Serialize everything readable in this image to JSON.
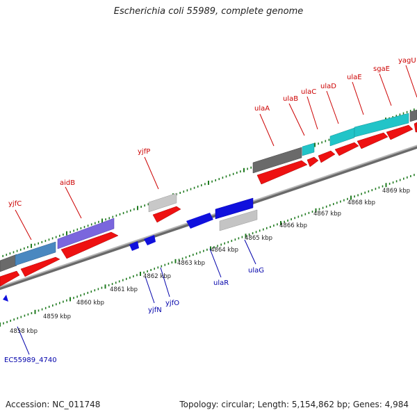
{
  "title": "Escherichia coli 55989, complete genome",
  "footer": {
    "accession": "Accession: NC_011748",
    "topology": "Topology: circular; Length: 5,154,862 bp; Genes: 4,984"
  },
  "colors": {
    "backbone": "#8c8c8c",
    "tick": "#1f7a1f",
    "gene_red": "#ee1111",
    "gene_blue": "#1010dd",
    "gene_cyan": "#22c4c8",
    "gene_purple": "#7a66dd",
    "gene_steel": "#4a88c0",
    "gene_gray": "#6a6a6a",
    "gene_lightgray": "#c4c4c4",
    "label_red": "#cc0000",
    "label_blue": "#0000aa"
  },
  "kbp_labels": [
    "4858 kbp",
    "4859 kbp",
    "4860 kbp",
    "4861 kbp",
    "4862 kbp",
    "4863 kbp",
    "4864 kbp",
    "4865 kbp",
    "4866 kbp",
    "4867 kbp",
    "4868 kbp",
    "4869 kbp"
  ],
  "gene_labels": {
    "yjfC": "yjfC",
    "aidB": "aidB",
    "yjfP": "yjfP",
    "ulaA": "ulaA",
    "ulaB": "ulaB",
    "ulaC": "ulaC",
    "ulaD": "ulaD",
    "ulaE": "ulaE",
    "sgaE": "sgaE",
    "yagU": "yagU",
    "EC55989_4740": "EC55989_4740",
    "yjfN": "yjfN",
    "yjfO": "yjfO",
    "ulaR": "ulaR",
    "ulaG": "ulaG"
  }
}
